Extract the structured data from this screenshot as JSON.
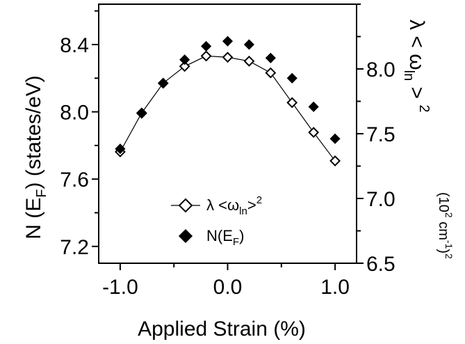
{
  "chart_data": {
    "type": "scatter",
    "x_label": "Applied Strain (%)",
    "x_tick_labels": [
      "-1.0",
      "0.0",
      "1.0"
    ],
    "x_ticks": [
      -1.0,
      0.0,
      1.0
    ],
    "x_range": [
      -1.2,
      1.2
    ],
    "left_axis": {
      "label_main": "N (E",
      "label_sub": "F",
      "label_tail": ") (states/eV)",
      "tick_labels": [
        "7.2",
        "7.6",
        "8.0",
        "8.4"
      ],
      "ticks": [
        7.2,
        7.6,
        8.0,
        8.4
      ],
      "range": [
        7.1,
        8.64
      ]
    },
    "right_axis": {
      "label_lambda": "λ < ω",
      "label_sub": "ln",
      "label_tail": " > ",
      "label_sup": "2",
      "unit_open": "(10",
      "unit_sup1": "2",
      "unit_mid": " cm",
      "unit_sup2": "-1",
      "unit_close": ")",
      "unit_sup3": "2",
      "tick_labels": [
        "6.5",
        "7.0",
        "7.5",
        "8.0"
      ],
      "ticks": [
        6.5,
        7.0,
        7.5,
        8.0
      ],
      "range": [
        6.5,
        8.5
      ]
    },
    "grid": false,
    "legend_position": "lower-center",
    "series": [
      {
        "name_main": "λ <ω",
        "name_sub": "ln",
        "name_tail": ">",
        "name_sup": "2",
        "axis": "right",
        "marker": "open-diamond",
        "line": true,
        "x": [
          -1.0,
          -0.8,
          -0.6,
          -0.4,
          -0.2,
          0.0,
          0.2,
          0.4,
          0.6,
          0.8,
          1.0
        ],
        "y": [
          7.36,
          7.66,
          7.89,
          8.02,
          8.1,
          8.09,
          8.06,
          7.97,
          7.74,
          7.51,
          7.29
        ]
      },
      {
        "name_main": "N(E",
        "name_sub": "F",
        "name_tail": ")",
        "axis": "left",
        "marker": "filled-diamond",
        "line": false,
        "x": [
          -1.0,
          -0.8,
          -0.6,
          -0.4,
          -0.2,
          0.0,
          0.2,
          0.4,
          0.6,
          0.8,
          1.0
        ],
        "y": [
          7.78,
          7.99,
          8.17,
          8.31,
          8.39,
          8.42,
          8.4,
          8.32,
          8.2,
          8.03,
          7.84
        ]
      }
    ]
  }
}
